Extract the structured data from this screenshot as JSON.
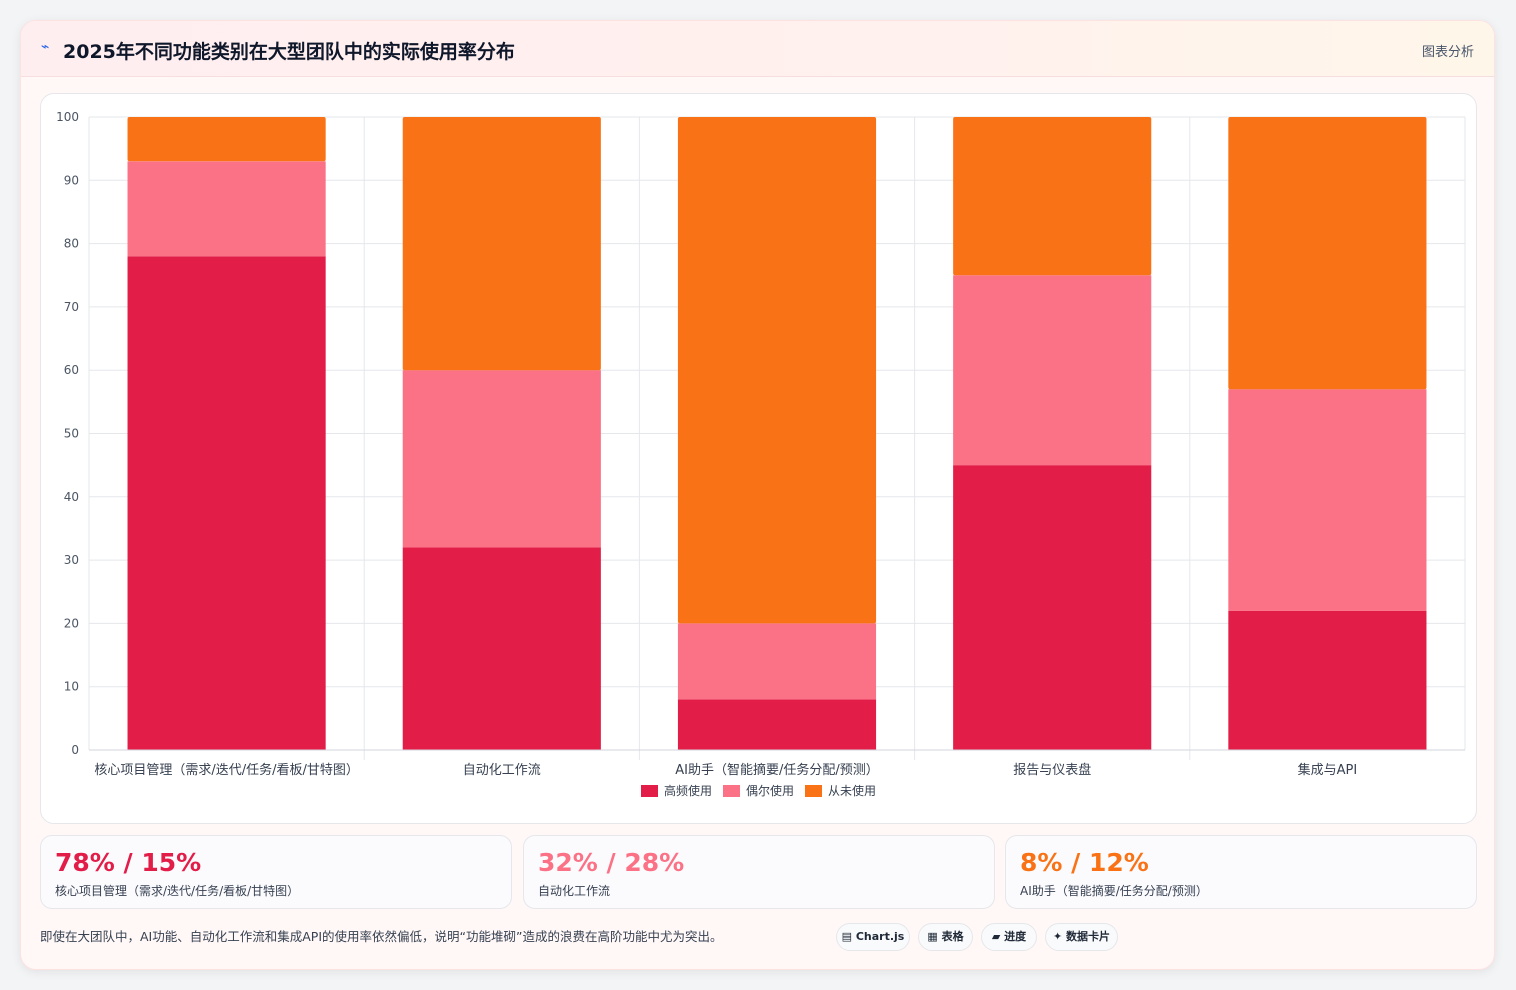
{
  "header": {
    "logo_icon": "chart-line-icon",
    "title": "2025年不同功能类别在大型团队中的实际使用率分布",
    "analysis_label": "图表分析"
  },
  "colors": {
    "high": "#e11d48",
    "occasional": "#fb7185",
    "never": "#f97316"
  },
  "chart_data": {
    "type": "bar",
    "stacked": true,
    "categories": [
      "核心项目管理（需求/迭代/任务/看板/甘特图）",
      "自动化工作流",
      "AI助手（智能摘要/任务分配/预测）",
      "报告与仪表盘",
      "集成与API"
    ],
    "series": [
      {
        "name": "高频使用",
        "values": [
          78,
          32,
          8,
          45,
          22
        ],
        "color": "#e11d48"
      },
      {
        "name": "偶尔使用",
        "values": [
          15,
          28,
          12,
          30,
          35
        ],
        "color": "#fb7185"
      },
      {
        "name": "从未使用",
        "values": [
          7,
          40,
          80,
          25,
          43
        ],
        "color": "#f97316"
      }
    ],
    "ylim": [
      0,
      100
    ],
    "yticks": [
      0,
      10,
      20,
      30,
      40,
      50,
      60,
      70,
      80,
      90,
      100
    ],
    "grid": true,
    "legend_position": "bottom-center"
  },
  "stats": [
    {
      "value": "78% / 15%",
      "label": "核心项目管理（需求/迭代/任务/看板/甘特图）",
      "color": "#e11d48"
    },
    {
      "value": "32% / 28%",
      "label": "自动化工作流",
      "color": "#fb7185"
    },
    {
      "value": "8% / 12%",
      "label": "AI助手（智能摘要/任务分配/预测）",
      "color": "#f97316"
    }
  ],
  "footer": {
    "note": "即使在大团队中，AI功能、自动化工作流和集成API的使用率依然偏低，说明“功能堆砌”造成的浪费在高阶功能中尤为突出。"
  },
  "chips": [
    {
      "label": "▤ Chart.js",
      "icon": "chart-icon"
    },
    {
      "label": "▦ 表格",
      "icon": "table-icon"
    },
    {
      "label": "▰ 进度",
      "icon": "progress-icon"
    },
    {
      "label": "✦ 数据卡片",
      "icon": "sparkle-icon"
    }
  ]
}
